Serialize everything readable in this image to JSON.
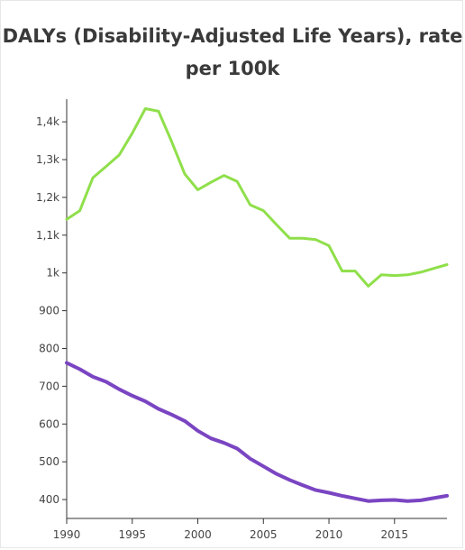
{
  "chart_data": {
    "type": "line",
    "title": "DALYs (Disability-Adjusted Life Years), rate per 100k",
    "xlabel": "",
    "ylabel": "",
    "xlim": [
      1990,
      2019
    ],
    "ylim": [
      350,
      1460
    ],
    "grid": false,
    "y_ticks": [
      400,
      500,
      600,
      700,
      800,
      900,
      1000,
      1100,
      1200,
      1300,
      1400
    ],
    "y_tick_labels": [
      "400",
      "500",
      "600",
      "700",
      "800",
      "900",
      "1k",
      "1,1k",
      "1,2k",
      "1,3k",
      "1,4k"
    ],
    "x_ticks": [
      1990,
      1995,
      2000,
      2005,
      2010,
      2015
    ],
    "x_tick_labels": [
      "1990",
      "1995",
      "2000",
      "2005",
      "2010",
      "2015"
    ],
    "x": [
      1990,
      1991,
      1992,
      1993,
      1994,
      1995,
      1996,
      1997,
      1998,
      1999,
      2000,
      2001,
      2002,
      2003,
      2004,
      2005,
      2006,
      2007,
      2008,
      2009,
      2010,
      2011,
      2012,
      2013,
      2014,
      2015,
      2016,
      2017,
      2018,
      2019
    ],
    "series": [
      {
        "color": "#8fdf4a",
        "values": [
          1142,
          1165,
          1252,
          1282,
          1312,
          1370,
          1435,
          1428,
          1348,
          1262,
          1220,
          1240,
          1258,
          1242,
          1180,
          1165,
          1128,
          1092,
          1092,
          1088,
          1072,
          1005,
          1005,
          965,
          995,
          993,
          995,
          1002,
          1012,
          1022
        ]
      },
      {
        "color": "#7a45c2",
        "values": [
          762,
          745,
          725,
          712,
          692,
          675,
          660,
          640,
          625,
          608,
          582,
          562,
          550,
          535,
          508,
          488,
          468,
          452,
          438,
          425,
          418,
          410,
          403,
          396,
          398,
          399,
          396,
          398,
          404,
          410
        ]
      }
    ]
  }
}
